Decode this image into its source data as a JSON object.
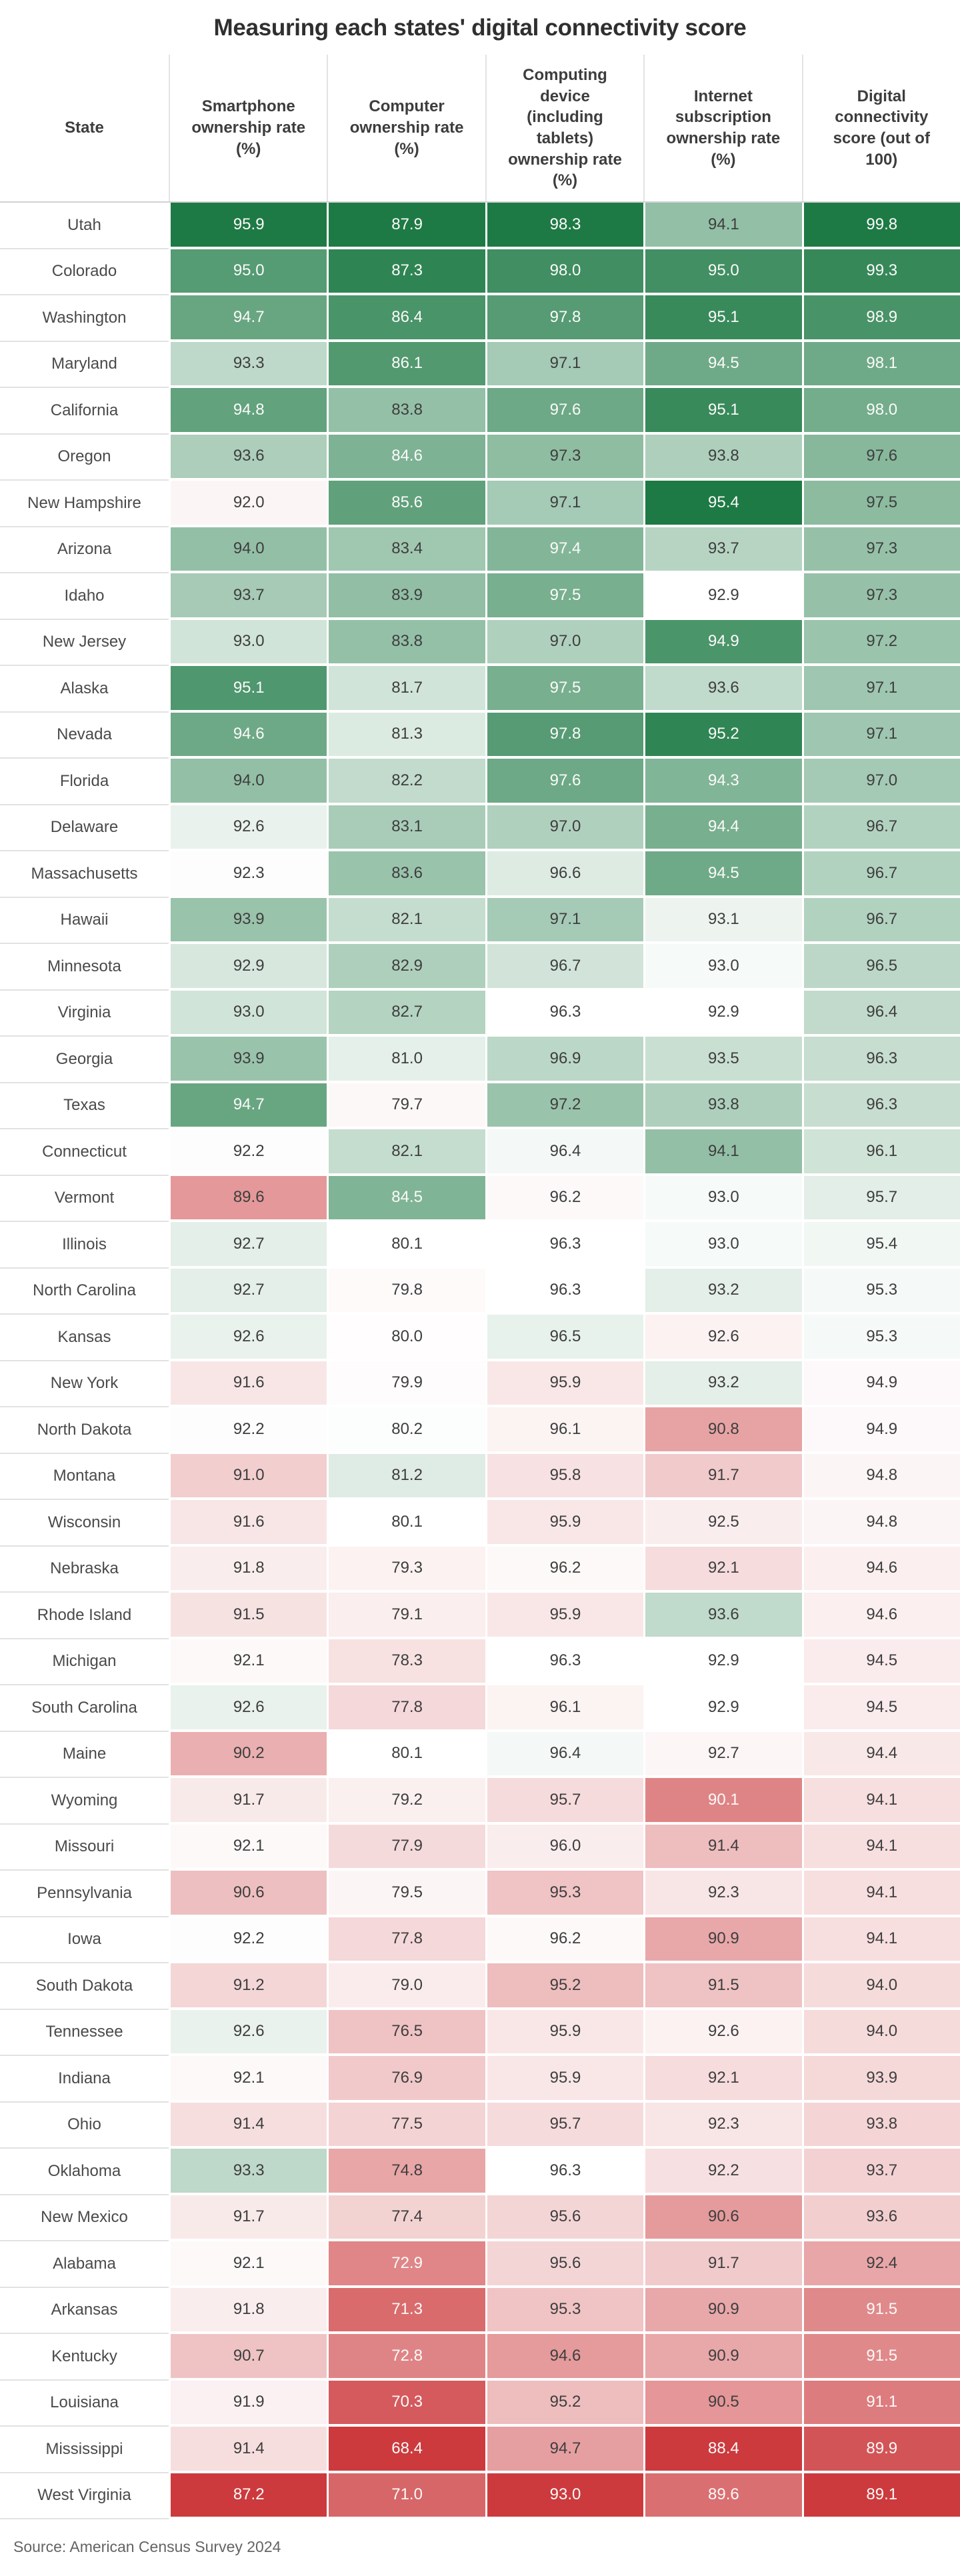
{
  "colors": {
    "positive_end": "#1E7A45",
    "negative_end": "#CC3A3D",
    "midpoint": "#FFFFFF",
    "text_dark": "#3E3E3E",
    "text_light": "#FBFAF9",
    "header_rule": "#D2D2D2",
    "row_separator": "#E2E2E2"
  },
  "chart_data": {
    "type": "table",
    "title": "Measuring each states' digital connectivity score",
    "source": "Source: American Census Survey 2024",
    "columns": [
      "State",
      "Smartphone ownership rate (%)",
      "Computer ownership rate (%)",
      "Computing device (including tablets) ownership rate (%)",
      "Internet subscription ownership rate (%)",
      "Digital connectivity score (out of 100)"
    ],
    "heatmap": {
      "description": "diverging red-white-green color scale applied per column, centered at each column's median",
      "negative_color": "#CC3A3D",
      "positive_color": "#1E7A45"
    },
    "rows": [
      [
        "Utah",
        95.9,
        87.9,
        98.3,
        94.1,
        99.8
      ],
      [
        "Colorado",
        95.0,
        87.3,
        98.0,
        95.0,
        99.3
      ],
      [
        "Washington",
        94.7,
        86.4,
        97.8,
        95.1,
        98.9
      ],
      [
        "Maryland",
        93.3,
        86.1,
        97.1,
        94.5,
        98.1
      ],
      [
        "California",
        94.8,
        83.8,
        97.6,
        95.1,
        98.0
      ],
      [
        "Oregon",
        93.6,
        84.6,
        97.3,
        93.8,
        97.6
      ],
      [
        "New Hampshire",
        92.0,
        85.6,
        97.1,
        95.4,
        97.5
      ],
      [
        "Arizona",
        94.0,
        83.4,
        97.4,
        93.7,
        97.3
      ],
      [
        "Idaho",
        93.7,
        83.9,
        97.5,
        92.9,
        97.3
      ],
      [
        "New Jersey",
        93.0,
        83.8,
        97.0,
        94.9,
        97.2
      ],
      [
        "Alaska",
        95.1,
        81.7,
        97.5,
        93.6,
        97.1
      ],
      [
        "Nevada",
        94.6,
        81.3,
        97.8,
        95.2,
        97.1
      ],
      [
        "Florida",
        94.0,
        82.2,
        97.6,
        94.3,
        97.0
      ],
      [
        "Delaware",
        92.6,
        83.1,
        97.0,
        94.4,
        96.7
      ],
      [
        "Massachusetts",
        92.3,
        83.6,
        96.6,
        94.5,
        96.7
      ],
      [
        "Hawaii",
        93.9,
        82.1,
        97.1,
        93.1,
        96.7
      ],
      [
        "Minnesota",
        92.9,
        82.9,
        96.7,
        93.0,
        96.5
      ],
      [
        "Virginia",
        93.0,
        82.7,
        96.3,
        92.9,
        96.4
      ],
      [
        "Georgia",
        93.9,
        81.0,
        96.9,
        93.5,
        96.3
      ],
      [
        "Texas",
        94.7,
        79.7,
        97.2,
        93.8,
        96.3
      ],
      [
        "Connecticut",
        92.2,
        82.1,
        96.4,
        94.1,
        96.1
      ],
      [
        "Vermont",
        89.6,
        84.5,
        96.2,
        93.0,
        95.7
      ],
      [
        "Illinois",
        92.7,
        80.1,
        96.3,
        93.0,
        95.4
      ],
      [
        "North Carolina",
        92.7,
        79.8,
        96.3,
        93.2,
        95.3
      ],
      [
        "Kansas",
        92.6,
        80.0,
        96.5,
        92.6,
        95.3
      ],
      [
        "New York",
        91.6,
        79.9,
        95.9,
        93.2,
        94.9
      ],
      [
        "North Dakota",
        92.2,
        80.2,
        96.1,
        90.8,
        94.9
      ],
      [
        "Montana",
        91.0,
        81.2,
        95.8,
        91.7,
        94.8
      ],
      [
        "Wisconsin",
        91.6,
        80.1,
        95.9,
        92.5,
        94.8
      ],
      [
        "Nebraska",
        91.8,
        79.3,
        96.2,
        92.1,
        94.6
      ],
      [
        "Rhode Island",
        91.5,
        79.1,
        95.9,
        93.6,
        94.6
      ],
      [
        "Michigan",
        92.1,
        78.3,
        96.3,
        92.9,
        94.5
      ],
      [
        "South Carolina",
        92.6,
        77.8,
        96.1,
        92.9,
        94.5
      ],
      [
        "Maine",
        90.2,
        80.1,
        96.4,
        92.7,
        94.4
      ],
      [
        "Wyoming",
        91.7,
        79.2,
        95.7,
        90.1,
        94.1
      ],
      [
        "Missouri",
        92.1,
        77.9,
        96.0,
        91.4,
        94.1
      ],
      [
        "Pennsylvania",
        90.6,
        79.5,
        95.3,
        92.3,
        94.1
      ],
      [
        "Iowa",
        92.2,
        77.8,
        96.2,
        90.9,
        94.1
      ],
      [
        "South Dakota",
        91.2,
        79.0,
        95.2,
        91.5,
        94.0
      ],
      [
        "Tennessee",
        92.6,
        76.5,
        95.9,
        92.6,
        94.0
      ],
      [
        "Indiana",
        92.1,
        76.9,
        95.9,
        92.1,
        93.9
      ],
      [
        "Ohio",
        91.4,
        77.5,
        95.7,
        92.3,
        93.8
      ],
      [
        "Oklahoma",
        93.3,
        74.8,
        96.3,
        92.2,
        93.7
      ],
      [
        "New Mexico",
        91.7,
        77.4,
        95.6,
        90.6,
        93.6
      ],
      [
        "Alabama",
        92.1,
        72.9,
        95.6,
        91.7,
        92.4
      ],
      [
        "Arkansas",
        91.8,
        71.3,
        95.3,
        90.9,
        91.5
      ],
      [
        "Kentucky",
        90.7,
        72.8,
        94.6,
        90.9,
        91.5
      ],
      [
        "Louisiana",
        91.9,
        70.3,
        95.2,
        90.5,
        91.1
      ],
      [
        "Mississippi",
        91.4,
        68.4,
        94.7,
        88.4,
        89.9
      ],
      [
        "West Virginia",
        87.2,
        71.0,
        93.0,
        89.6,
        89.1
      ]
    ]
  }
}
